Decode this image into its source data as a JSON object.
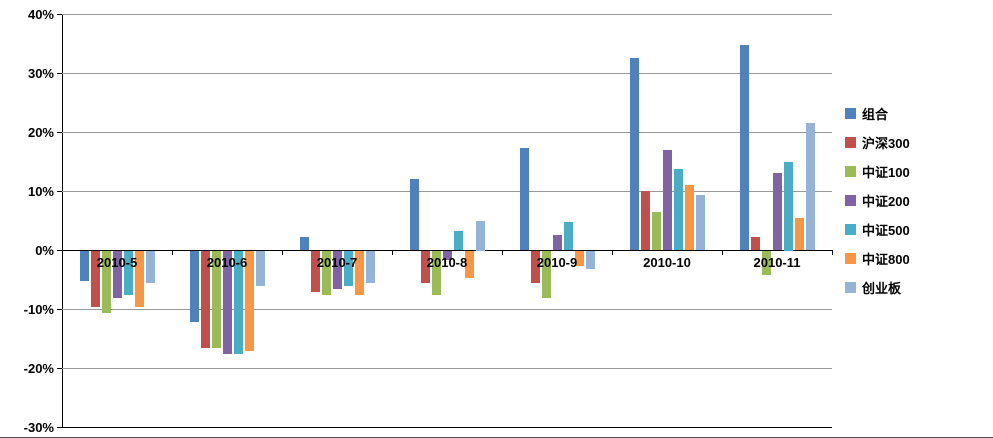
{
  "chart_data": {
    "type": "bar",
    "title": "",
    "xlabel": "",
    "ylabel": "",
    "grid": true,
    "legend_position": "right",
    "ylim": [
      -30,
      40
    ],
    "ytick_step": 10,
    "ytick_labels": [
      "40%",
      "30%",
      "20%",
      "10%",
      "0%",
      "-10%",
      "-20%",
      "-30%"
    ],
    "categories": [
      "2010-5",
      "2010-6",
      "2010-7",
      "2010-8",
      "2010-9",
      "2010-10",
      "2010-11"
    ],
    "series": [
      {
        "name": "组合",
        "color": "#4F81BD",
        "values": [
          -5.0,
          -12.0,
          2.2,
          12.0,
          17.3,
          32.5,
          34.8
        ]
      },
      {
        "name": "沪深300",
        "color": "#C0504D",
        "values": [
          -9.5,
          -16.5,
          -7.0,
          -5.5,
          -5.5,
          10.0,
          2.2
        ]
      },
      {
        "name": "中证100",
        "color": "#9BBB59",
        "values": [
          -10.5,
          -16.5,
          -7.5,
          -7.5,
          -8.0,
          6.5,
          -4.0
        ]
      },
      {
        "name": "中证200",
        "color": "#8064A2",
        "values": [
          -8.0,
          -17.5,
          -6.5,
          -1.5,
          2.5,
          17.0,
          13.0
        ]
      },
      {
        "name": "中证500",
        "color": "#4BACC6",
        "values": [
          -7.5,
          -17.5,
          -6.0,
          3.3,
          4.7,
          13.8,
          15.0
        ]
      },
      {
        "name": "中证800",
        "color": "#F79646",
        "values": [
          -9.5,
          -17.0,
          -7.5,
          -4.5,
          -2.5,
          11.0,
          5.5
        ]
      },
      {
        "name": "创业板",
        "color": "#95B3D7",
        "values": [
          -5.5,
          -6.0,
          -5.5,
          5.0,
          -3.0,
          9.3,
          21.5
        ]
      }
    ]
  },
  "layout_colors": {
    "gridline": "#9a9a9a",
    "axis": "#000000",
    "background": "#ffffff"
  }
}
